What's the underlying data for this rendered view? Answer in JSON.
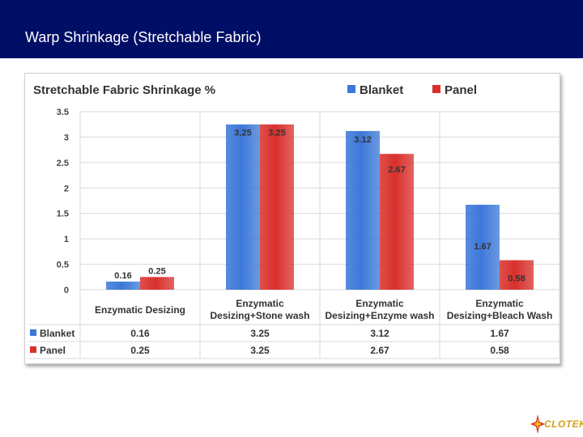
{
  "page": {
    "title": "Warp Shrinkage (Stretchable Fabric)"
  },
  "logo": {
    "text": "CLOTEK",
    "name": "logo"
  },
  "chart_data": {
    "type": "bar",
    "title": "Stretchable Fabric Shrinkage %",
    "categories": [
      [
        "Enzymatic Desizing"
      ],
      [
        "Enzymatic",
        "Desizing+Stone wash"
      ],
      [
        "Enzymatic",
        "Desizing+Enzyme wash"
      ],
      [
        "Enzymatic",
        "Desizing+Bleach Wash"
      ]
    ],
    "series": [
      {
        "name": "Blanket",
        "color": "#3b78d8",
        "values": [
          0.16,
          3.25,
          3.12,
          1.67
        ],
        "labels": [
          "0.16",
          "3.25",
          "3.12",
          "1.67"
        ]
      },
      {
        "name": "Panel",
        "color": "#d9302c",
        "values": [
          0.25,
          3.25,
          2.67,
          0.58
        ],
        "labels": [
          "0.25",
          "3.25",
          "2.67",
          "0.58"
        ]
      }
    ],
    "ylim": [
      0,
      3.5
    ],
    "yticks": [
      "0",
      "0.5",
      "1",
      "1.5",
      "2",
      "2.5",
      "3",
      "3.5"
    ],
    "grid": true,
    "legend_position": "top-right",
    "data_table": true
  }
}
